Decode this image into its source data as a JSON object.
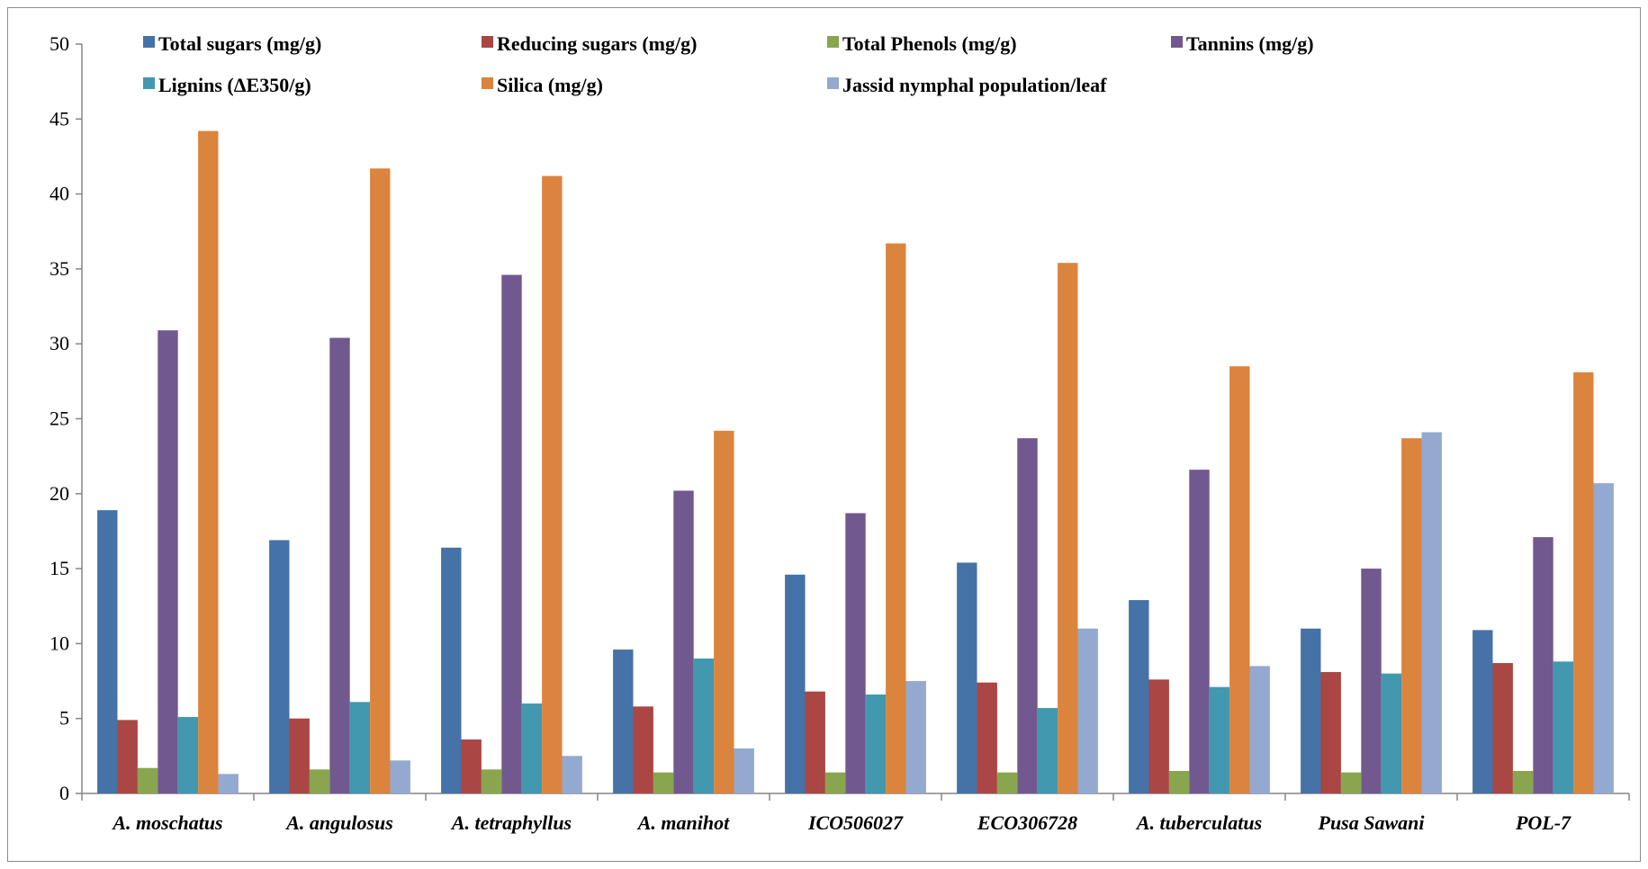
{
  "chart_data": {
    "type": "bar",
    "categories": [
      "A. moschatus",
      "A. angulosus",
      "A. tetraphyllus",
      "A. manihot",
      "ICO506027",
      "ECO306728",
      "A. tuberculatus",
      "Pusa Sawani",
      "POL-7"
    ],
    "ylim": [
      0,
      50
    ],
    "yticks": [
      0,
      5,
      10,
      15,
      20,
      25,
      30,
      35,
      40,
      45,
      50
    ],
    "grid": false,
    "legend_position": "top",
    "series": [
      {
        "name": "Total sugars (mg/g)",
        "color": "#4572A7",
        "values": [
          18.9,
          16.9,
          16.4,
          9.6,
          14.6,
          15.4,
          12.9,
          11.0,
          10.9
        ]
      },
      {
        "name": "Reducing sugars (mg/g)",
        "color": "#AA4643",
        "values": [
          4.9,
          5.0,
          3.6,
          5.8,
          6.8,
          7.4,
          7.6,
          8.1,
          8.7
        ]
      },
      {
        "name": "Total Phenols (mg/g)",
        "color": "#89A54E",
        "values": [
          1.7,
          1.6,
          1.6,
          1.4,
          1.4,
          1.4,
          1.5,
          1.4,
          1.5
        ]
      },
      {
        "name": "Tannins (mg/g)",
        "color": "#71588F",
        "values": [
          30.9,
          30.4,
          34.6,
          20.2,
          18.7,
          23.7,
          21.6,
          15.0,
          17.1
        ]
      },
      {
        "name": "Lignins (ΔE350/g)",
        "color": "#4198AF",
        "values": [
          5.1,
          6.1,
          6.0,
          9.0,
          6.6,
          5.7,
          7.1,
          8.0,
          8.8
        ]
      },
      {
        "name": "Silica (mg/g)",
        "color": "#DB843D",
        "values": [
          44.2,
          41.7,
          41.2,
          24.2,
          36.7,
          35.4,
          28.5,
          23.7,
          28.1
        ]
      },
      {
        "name": "Jassid nymphal population/leaf",
        "color": "#93A9CF",
        "values": [
          1.3,
          2.2,
          2.5,
          3.0,
          7.5,
          11.0,
          8.5,
          24.1,
          20.7
        ]
      }
    ]
  }
}
